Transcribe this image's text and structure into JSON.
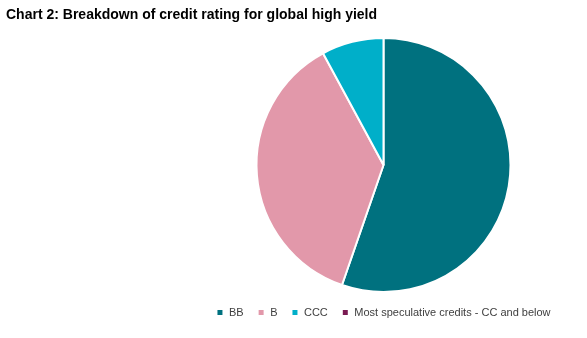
{
  "chart_data": {
    "type": "pie",
    "title": "Chart 2: Breakdown of credit rating for global high yield",
    "categories": [
      "BB",
      "B",
      "CCC",
      "Most speculative credits - CC and below"
    ],
    "values": [
      55.3,
      36.8,
      7.9,
      0
    ],
    "colors": [
      "#00717f",
      "#e298aa",
      "#00afc9",
      "#7a1a52"
    ],
    "legend": "bottom"
  }
}
